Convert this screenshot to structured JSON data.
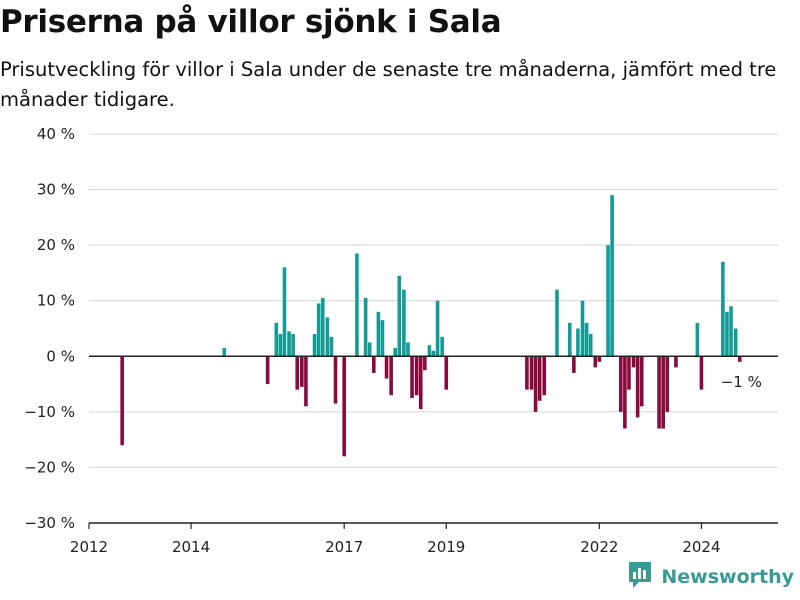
{
  "title": "Priserna på villor sjönk i Sala",
  "subtitle": "Prisutveckling för villor i Sala under de senaste tre månaderna, jämfört med tre månader tidigare.",
  "brand": "Newsworthy",
  "colors": {
    "positive": "#139c96",
    "negative": "#8b0a3e",
    "grid": "#d4d4d4",
    "axis": "#222222",
    "brand": "#3a9a97"
  },
  "chart_data": {
    "type": "bar",
    "y_unit": "%",
    "ylim": [
      -30,
      40
    ],
    "y_ticks": [
      40,
      30,
      20,
      10,
      0,
      -10,
      -20,
      -30
    ],
    "y_tick_labels": [
      "40 %",
      "30 %",
      "20 %",
      "10 %",
      "0 %",
      "−10 %",
      "−20 %",
      "−30 %"
    ],
    "xlim": [
      2012.0,
      2025.5
    ],
    "x_ticks": [
      2012,
      2014,
      2017,
      2019,
      2022,
      2024
    ],
    "grid": true,
    "legend": "none",
    "annotation": {
      "text": "−1 %",
      "x": 2024.75,
      "y": -1
    },
    "points": [
      {
        "x": 2012.65,
        "y": -16
      },
      {
        "x": 2014.65,
        "y": 1.5
      },
      {
        "x": 2015.5,
        "y": -5
      },
      {
        "x": 2015.67,
        "y": 6
      },
      {
        "x": 2015.75,
        "y": 4
      },
      {
        "x": 2015.83,
        "y": 16
      },
      {
        "x": 2015.92,
        "y": 4.5
      },
      {
        "x": 2016.0,
        "y": 4
      },
      {
        "x": 2016.08,
        "y": -6
      },
      {
        "x": 2016.17,
        "y": -5.5
      },
      {
        "x": 2016.25,
        "y": -9
      },
      {
        "x": 2016.42,
        "y": 4
      },
      {
        "x": 2016.5,
        "y": 9.5
      },
      {
        "x": 2016.58,
        "y": 10.5
      },
      {
        "x": 2016.67,
        "y": 7
      },
      {
        "x": 2016.75,
        "y": 3.5
      },
      {
        "x": 2016.83,
        "y": -8.5
      },
      {
        "x": 2017.0,
        "y": -18
      },
      {
        "x": 2017.25,
        "y": 18.5
      },
      {
        "x": 2017.42,
        "y": 10.5
      },
      {
        "x": 2017.5,
        "y": 2.5
      },
      {
        "x": 2017.58,
        "y": -3
      },
      {
        "x": 2017.67,
        "y": 8
      },
      {
        "x": 2017.75,
        "y": 6.5
      },
      {
        "x": 2017.83,
        "y": -4
      },
      {
        "x": 2017.92,
        "y": -7
      },
      {
        "x": 2018.0,
        "y": 1.5
      },
      {
        "x": 2018.08,
        "y": 14.5
      },
      {
        "x": 2018.17,
        "y": 12
      },
      {
        "x": 2018.25,
        "y": 2.5
      },
      {
        "x": 2018.33,
        "y": -7.5
      },
      {
        "x": 2018.42,
        "y": -7
      },
      {
        "x": 2018.5,
        "y": -9.5
      },
      {
        "x": 2018.58,
        "y": -2.5
      },
      {
        "x": 2018.67,
        "y": 2
      },
      {
        "x": 2018.75,
        "y": 1
      },
      {
        "x": 2018.83,
        "y": 10
      },
      {
        "x": 2018.92,
        "y": 3.5
      },
      {
        "x": 2019.0,
        "y": -6
      },
      {
        "x": 2020.58,
        "y": -6
      },
      {
        "x": 2020.67,
        "y": -6
      },
      {
        "x": 2020.75,
        "y": -10
      },
      {
        "x": 2020.83,
        "y": -8
      },
      {
        "x": 2020.92,
        "y": -7
      },
      {
        "x": 2021.17,
        "y": 12
      },
      {
        "x": 2021.42,
        "y": 6
      },
      {
        "x": 2021.5,
        "y": -3
      },
      {
        "x": 2021.58,
        "y": 5
      },
      {
        "x": 2021.67,
        "y": 10
      },
      {
        "x": 2021.75,
        "y": 6
      },
      {
        "x": 2021.83,
        "y": 4
      },
      {
        "x": 2021.92,
        "y": -2
      },
      {
        "x": 2022.0,
        "y": -1
      },
      {
        "x": 2022.17,
        "y": 20
      },
      {
        "x": 2022.25,
        "y": 29
      },
      {
        "x": 2022.42,
        "y": -10
      },
      {
        "x": 2022.5,
        "y": -13
      },
      {
        "x": 2022.58,
        "y": -6
      },
      {
        "x": 2022.67,
        "y": -2
      },
      {
        "x": 2022.75,
        "y": -11
      },
      {
        "x": 2022.83,
        "y": -9
      },
      {
        "x": 2023.17,
        "y": -13
      },
      {
        "x": 2023.25,
        "y": -13
      },
      {
        "x": 2023.33,
        "y": -10
      },
      {
        "x": 2023.5,
        "y": -2
      },
      {
        "x": 2023.92,
        "y": 6
      },
      {
        "x": 2024.0,
        "y": -6
      },
      {
        "x": 2024.42,
        "y": 17
      },
      {
        "x": 2024.5,
        "y": 8
      },
      {
        "x": 2024.58,
        "y": 9
      },
      {
        "x": 2024.67,
        "y": 5
      },
      {
        "x": 2024.75,
        "y": -1
      }
    ]
  }
}
